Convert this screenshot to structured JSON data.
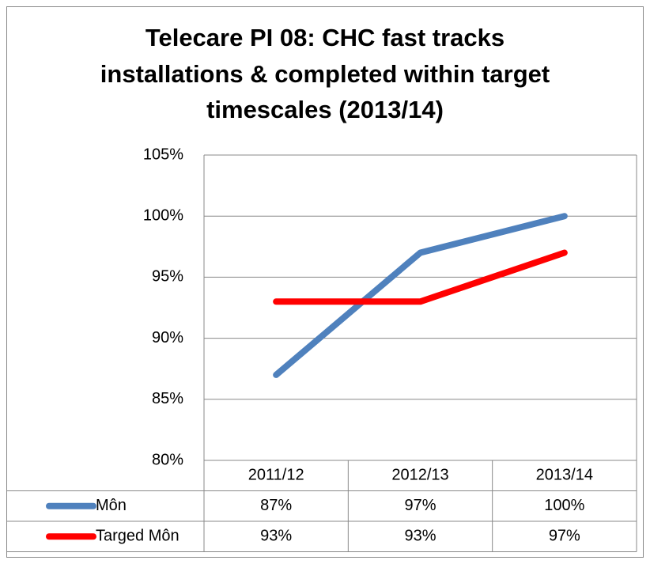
{
  "chart_data": {
    "type": "line",
    "title": [
      "Telecare PI 08: CHC fast tracks",
      "installations & completed within target",
      "timescales (2013/14)"
    ],
    "categories": [
      "2011/12",
      "2012/13",
      "2013/14"
    ],
    "series": [
      {
        "name": "Môn",
        "color": "#4f81bd",
        "values": [
          87,
          97,
          100
        ],
        "value_labels": [
          "87%",
          "97%",
          "100%"
        ]
      },
      {
        "name": "Targed Môn",
        "color": "#ff0000",
        "values": [
          93,
          93,
          97
        ],
        "value_labels": [
          "93%",
          "93%",
          "97%"
        ]
      }
    ],
    "ylim": [
      80,
      105
    ],
    "yticks": [
      {
        "value": 80,
        "label": "80%"
      },
      {
        "value": 85,
        "label": "85%"
      },
      {
        "value": 90,
        "label": "90%"
      },
      {
        "value": 95,
        "label": "95%"
      },
      {
        "value": 100,
        "label": "100%"
      },
      {
        "value": 105,
        "label": "105%"
      }
    ],
    "grid": true,
    "data_table": true
  }
}
